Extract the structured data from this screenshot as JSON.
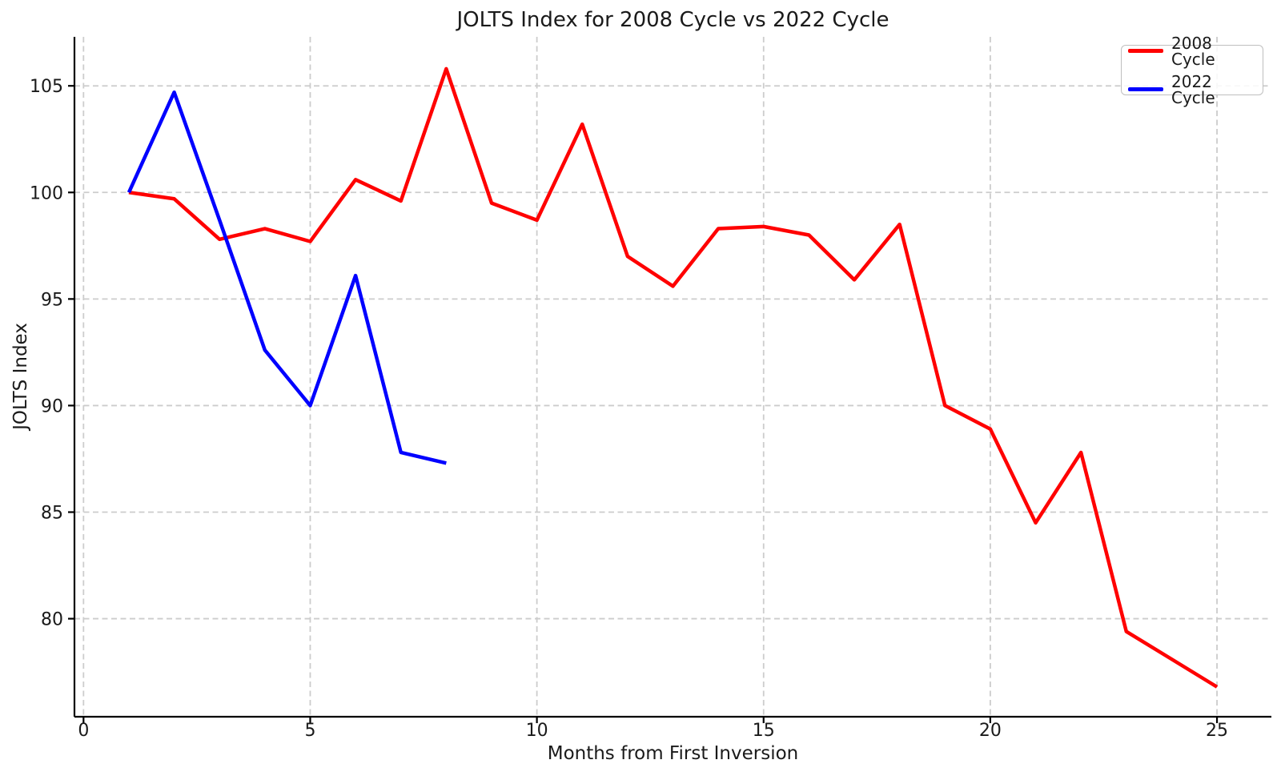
{
  "chart_data": {
    "type": "line",
    "title": "JOLTS Index for 2008 Cycle vs 2022 Cycle",
    "xlabel": "Months from First Inversion",
    "ylabel": "JOLTS Index",
    "x_ticks": [
      0,
      5,
      10,
      15,
      20,
      25
    ],
    "y_ticks": [
      80,
      85,
      90,
      95,
      100,
      105
    ],
    "xlim": [
      -0.2,
      26.2
    ],
    "ylim": [
      75.4,
      107.3
    ],
    "grid": "dashed-lightgray-both-axes",
    "legend_position": "upper-right",
    "spines": "left-bottom-only",
    "series": [
      {
        "name": "2008 Cycle",
        "color": "#ff0000",
        "x": [
          1,
          2,
          3,
          4,
          5,
          6,
          7,
          8,
          9,
          10,
          11,
          12,
          13,
          14,
          15,
          16,
          17,
          18,
          19,
          20,
          21,
          22,
          23,
          24,
          25
        ],
        "values": [
          100.0,
          99.7,
          97.8,
          98.3,
          97.7,
          100.6,
          99.6,
          105.8,
          99.5,
          98.7,
          103.2,
          97.0,
          95.6,
          98.3,
          98.4,
          98.0,
          95.9,
          98.5,
          90.0,
          88.9,
          84.5,
          87.8,
          79.4,
          78.1,
          76.8
        ]
      },
      {
        "name": "2022 Cycle",
        "color": "#0000ff",
        "x": [
          1,
          2,
          3,
          4,
          5,
          6,
          7,
          8
        ],
        "values": [
          100.0,
          104.7,
          98.7,
          92.6,
          90.0,
          96.1,
          87.8,
          87.3
        ]
      }
    ]
  }
}
